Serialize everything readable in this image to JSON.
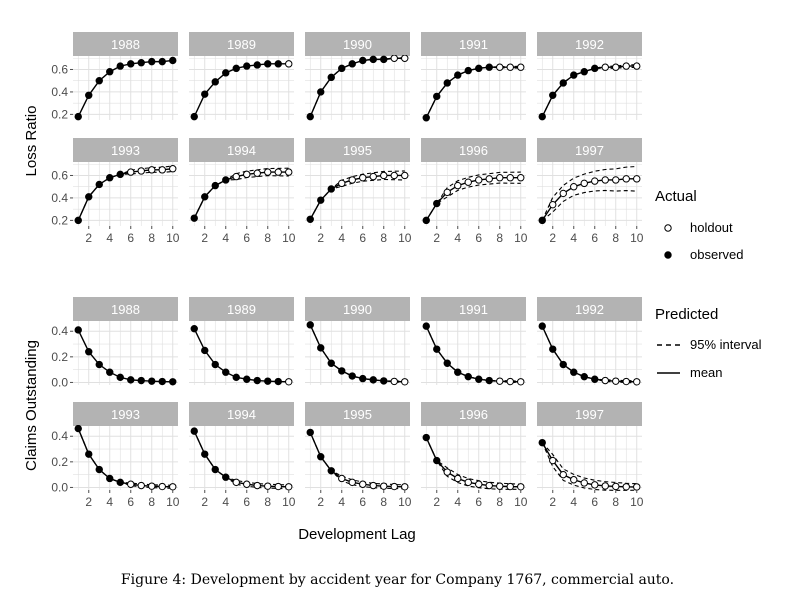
{
  "figure": {
    "caption": "Figure 4:   Development by accident year for Company 1767, commercial auto.",
    "xlabel": "Development Lag",
    "legend": {
      "actual_title": "Actual",
      "actual_items": [
        "holdout",
        "observed"
      ],
      "predicted_title": "Predicted",
      "predicted_items": [
        "95% interval",
        "mean"
      ]
    }
  },
  "chart_data": [
    {
      "type": "line",
      "title": "",
      "ylabel": "Loss Ratio",
      "xlabel": "Development Lag",
      "xlim": [
        0.5,
        10.5
      ],
      "ylim": [
        0.15,
        0.72
      ],
      "yticks": [
        0.2,
        0.4,
        0.6
      ],
      "ytick_labels": [
        "0.2",
        "0.4",
        "0.6"
      ],
      "xticks": [
        2,
        4,
        6,
        8,
        10
      ],
      "xtick_labels": [
        "2",
        "4",
        "6",
        "8",
        "10"
      ],
      "grid": true,
      "legend_position": "right",
      "panels": [
        {
          "year": "1988",
          "observed_upto": 10,
          "values": [
            0.18,
            0.37,
            0.5,
            0.58,
            0.63,
            0.65,
            0.66,
            0.67,
            0.67,
            0.68
          ],
          "interval": [
            0,
            0
          ]
        },
        {
          "year": "1989",
          "observed_upto": 9,
          "values": [
            0.18,
            0.38,
            0.49,
            0.57,
            0.61,
            0.63,
            0.64,
            0.65,
            0.65,
            0.65
          ],
          "interval": [
            0,
            0
          ]
        },
        {
          "year": "1990",
          "observed_upto": 8,
          "values": [
            0.18,
            0.4,
            0.53,
            0.61,
            0.65,
            0.68,
            0.69,
            0.69,
            0.7,
            0.7
          ],
          "interval": [
            0.003,
            0.006
          ]
        },
        {
          "year": "1991",
          "observed_upto": 7,
          "values": [
            0.17,
            0.36,
            0.48,
            0.55,
            0.59,
            0.61,
            0.62,
            0.62,
            0.62,
            0.62
          ],
          "interval": [
            0.005,
            0.008
          ]
        },
        {
          "year": "1992",
          "observed_upto": 6,
          "values": [
            0.18,
            0.37,
            0.48,
            0.55,
            0.58,
            0.61,
            0.62,
            0.62,
            0.63,
            0.63
          ],
          "interval": [
            0.008,
            0.012
          ]
        },
        {
          "year": "1993",
          "observed_upto": 5,
          "values": [
            0.2,
            0.41,
            0.52,
            0.58,
            0.61,
            0.63,
            0.64,
            0.65,
            0.65,
            0.66
          ],
          "interval": [
            0.015,
            0.025
          ]
        },
        {
          "year": "1994",
          "observed_upto": 4,
          "values": [
            0.22,
            0.41,
            0.51,
            0.56,
            0.59,
            0.61,
            0.62,
            0.63,
            0.63,
            0.63
          ],
          "interval": [
            0.025,
            0.035
          ]
        },
        {
          "year": "1995",
          "observed_upto": 3,
          "values": [
            0.21,
            0.38,
            0.48,
            0.53,
            0.56,
            0.58,
            0.59,
            0.6,
            0.6,
            0.6
          ],
          "interval": [
            0.025,
            0.04
          ]
        },
        {
          "year": "1996",
          "observed_upto": 2,
          "values": [
            0.2,
            0.35,
            0.45,
            0.51,
            0.54,
            0.56,
            0.57,
            0.58,
            0.58,
            0.58
          ],
          "interval": [
            0.04,
            0.05
          ]
        },
        {
          "year": "1997",
          "observed_upto": 1,
          "values": [
            0.2,
            0.34,
            0.44,
            0.5,
            0.53,
            0.55,
            0.56,
            0.56,
            0.57,
            0.57
          ],
          "interval": [
            0.06,
            0.11
          ]
        }
      ]
    },
    {
      "type": "line",
      "title": "",
      "ylabel": "Claims Outstanding",
      "xlabel": "Development Lag",
      "xlim": [
        0.5,
        10.5
      ],
      "ylim": [
        -0.02,
        0.48
      ],
      "yticks": [
        0.0,
        0.2,
        0.4
      ],
      "ytick_labels": [
        "0.0",
        "0.2",
        "0.4"
      ],
      "xticks": [
        2,
        4,
        6,
        8,
        10
      ],
      "xtick_labels": [
        "2",
        "4",
        "6",
        "8",
        "10"
      ],
      "grid": true,
      "legend_position": "right",
      "panels": [
        {
          "year": "1988",
          "observed_upto": 10,
          "values": [
            0.41,
            0.24,
            0.14,
            0.08,
            0.04,
            0.02,
            0.015,
            0.01,
            0.007,
            0.005
          ],
          "interval": [
            0,
            0
          ]
        },
        {
          "year": "1989",
          "observed_upto": 9,
          "values": [
            0.42,
            0.25,
            0.14,
            0.08,
            0.04,
            0.025,
            0.015,
            0.01,
            0.007,
            0.005
          ],
          "interval": [
            0,
            0
          ]
        },
        {
          "year": "1990",
          "observed_upto": 8,
          "values": [
            0.45,
            0.27,
            0.15,
            0.09,
            0.05,
            0.03,
            0.02,
            0.012,
            0.008,
            0.005
          ],
          "interval": [
            0.003,
            0.005
          ]
        },
        {
          "year": "1991",
          "observed_upto": 7,
          "values": [
            0.44,
            0.26,
            0.15,
            0.08,
            0.045,
            0.025,
            0.015,
            0.01,
            0.007,
            0.005
          ],
          "interval": [
            0.004,
            0.006
          ]
        },
        {
          "year": "1992",
          "observed_upto": 6,
          "values": [
            0.44,
            0.26,
            0.14,
            0.08,
            0.045,
            0.025,
            0.015,
            0.01,
            0.007,
            0.005
          ],
          "interval": [
            0.006,
            0.008
          ]
        },
        {
          "year": "1993",
          "observed_upto": 5,
          "values": [
            0.46,
            0.26,
            0.14,
            0.07,
            0.04,
            0.025,
            0.015,
            0.01,
            0.007,
            0.005
          ],
          "interval": [
            0.01,
            0.012
          ]
        },
        {
          "year": "1994",
          "observed_upto": 4,
          "values": [
            0.44,
            0.26,
            0.14,
            0.08,
            0.04,
            0.025,
            0.015,
            0.01,
            0.007,
            0.005
          ],
          "interval": [
            0.015,
            0.015
          ]
        },
        {
          "year": "1995",
          "observed_upto": 3,
          "values": [
            0.43,
            0.24,
            0.13,
            0.07,
            0.04,
            0.025,
            0.015,
            0.01,
            0.007,
            0.005
          ],
          "interval": [
            0.02,
            0.015
          ]
        },
        {
          "year": "1996",
          "observed_upto": 2,
          "values": [
            0.39,
            0.21,
            0.12,
            0.07,
            0.04,
            0.025,
            0.015,
            0.01,
            0.007,
            0.005
          ],
          "interval": [
            0.035,
            0.02
          ]
        },
        {
          "year": "1997",
          "observed_upto": 1,
          "values": [
            0.35,
            0.21,
            0.1,
            0.06,
            0.035,
            0.02,
            0.012,
            0.008,
            0.005,
            0.004
          ],
          "interval": [
            0.05,
            0.025
          ]
        }
      ]
    }
  ],
  "colors": {
    "strip": "#b3b3b3",
    "strip_text": "#ffffff",
    "grid": "#e0e0e0",
    "ink": "#000000",
    "axis_text": "#4d4d4d"
  }
}
